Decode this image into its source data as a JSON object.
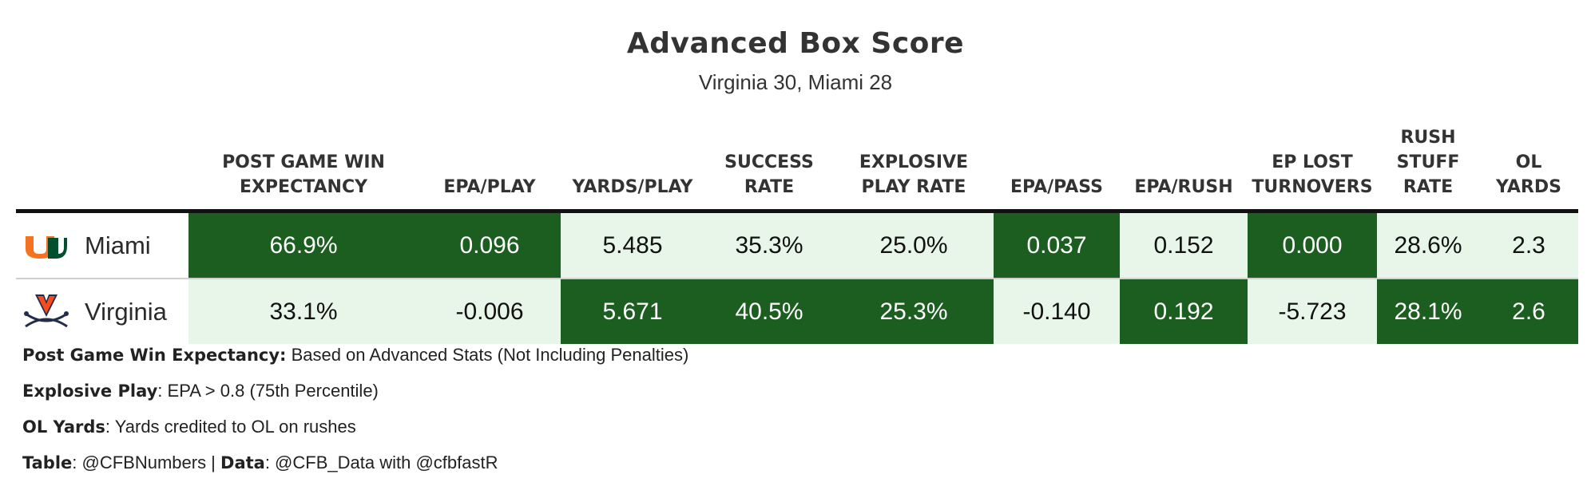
{
  "title": "Advanced Box Score",
  "subtitle": "Virginia 30, Miami 28",
  "colors": {
    "high": "#1b5e20",
    "high_text": "#ffffff",
    "low": "#e8f5e9",
    "low_text": "#111111"
  },
  "columns": [
    "POST GAME WIN EXPECTANCY",
    "EPA/PLAY",
    "YARDS/PLAY",
    "SUCCESS RATE",
    "EXPLOSIVE PLAY RATE",
    "EPA/PASS",
    "EPA/RUSH",
    "EP LOST TURNOVERS",
    "RUSH STUFF RATE",
    "OL YARDS"
  ],
  "rows": [
    {
      "team": "Miami",
      "logo": "miami-u-logo-icon",
      "values": [
        "66.9%",
        "0.096",
        "5.485",
        "35.3%",
        "25.0%",
        "0.037",
        "0.152",
        "0.000",
        "28.6%",
        "2.3"
      ]
    },
    {
      "team": "Virginia",
      "logo": "virginia-sabres-logo-icon",
      "values": [
        "33.1%",
        "-0.006",
        "5.671",
        "40.5%",
        "25.3%",
        "-0.140",
        "0.192",
        "-5.723",
        "28.1%",
        "2.6"
      ]
    }
  ],
  "chart_data": {
    "type": "table",
    "title": "Advanced Box Score",
    "subtitle": "Virginia 30, Miami 28",
    "columns": [
      "POST GAME WIN EXPECTANCY",
      "EPA/PLAY",
      "YARDS/PLAY",
      "SUCCESS RATE",
      "EXPLOSIVE PLAY RATE",
      "EPA/PASS",
      "EPA/RUSH",
      "EP LOST TURNOVERS",
      "RUSH STUFF RATE",
      "OL YARDS"
    ],
    "series": [
      {
        "name": "Miami",
        "values": [
          66.9,
          0.096,
          5.485,
          35.3,
          25.0,
          0.037,
          0.152,
          0.0,
          28.6,
          2.3
        ]
      },
      {
        "name": "Virginia",
        "values": [
          33.1,
          -0.006,
          5.671,
          40.5,
          25.3,
          -0.14,
          0.192,
          -5.723,
          28.1,
          2.6
        ]
      }
    ]
  },
  "footnotes": [
    {
      "label": "Post Game Win Expectancy:",
      "text": " Based on Advanced Stats (Not Including Penalties)"
    },
    {
      "label": "Explosive Play",
      "text": ": EPA > 0.8 (75th Percentile)"
    },
    {
      "label": "OL Yards",
      "text": ": Yards credited to OL on rushes"
    },
    {
      "label": "Table",
      "text": ": @CFBNumbers | ",
      "label2": "Data",
      "text2": ": @CFB_Data with @cfbfastR"
    }
  ]
}
